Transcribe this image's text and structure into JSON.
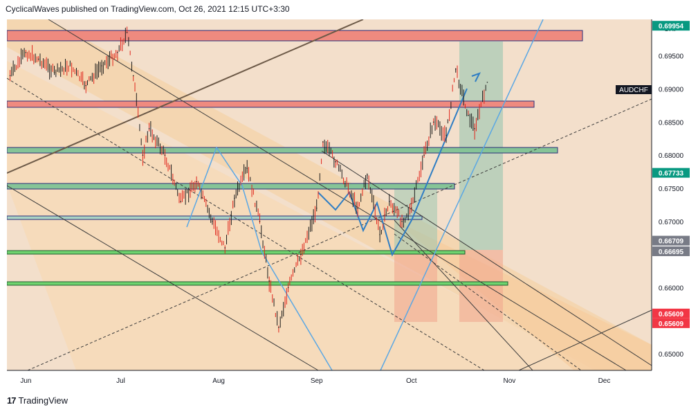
{
  "header": {
    "text": "CyclicalWaves published on TradingView.com, Oct 26, 2021 12:15 UTC+3:30"
  },
  "footer": {
    "logo": "17",
    "brand": "TradingView"
  },
  "chart_data": {
    "type": "line",
    "symbol": "AUDCHF",
    "currency": "CHF",
    "title": "",
    "xlabel": "",
    "ylabel": "",
    "x_ticks": [
      "Jun",
      "Jul",
      "Aug",
      "Sep",
      "Oct",
      "Nov",
      "Dec"
    ],
    "y_ticks": [
      "0.69500",
      "0.69000",
      "0.68500",
      "0.68000",
      "0.67500",
      "0.67000",
      "0.66000",
      "0.65000"
    ],
    "ylim": [
      0.6475,
      0.7005
    ],
    "price_labels": [
      {
        "value": "0.69954",
        "color": "#089981"
      },
      {
        "value": "0.67733",
        "color": "#089981"
      },
      {
        "value": "0.66709",
        "color": "#787b86"
      },
      {
        "value": "0.66695",
        "color": "#787b86"
      },
      {
        "value": "0.65609",
        "color": "#f23645"
      },
      {
        "value": "0.65609",
        "color": "#f23645"
      }
    ],
    "grid": false,
    "series": [
      {
        "x": [
          "2021-05-27",
          "2021-06-01",
          "2021-06-05",
          "2021-06-10",
          "2021-06-15",
          "2021-06-20",
          "2021-06-25",
          "2021-06-30",
          "2021-07-03",
          "2021-07-05",
          "2021-07-08",
          "2021-07-10",
          "2021-07-15",
          "2021-07-20",
          "2021-07-25",
          "2021-07-30",
          "2021-08-03",
          "2021-08-06",
          "2021-08-10",
          "2021-08-14",
          "2021-08-17",
          "2021-08-20",
          "2021-08-23",
          "2021-08-27",
          "2021-09-01",
          "2021-09-03",
          "2021-09-07",
          "2021-09-10",
          "2021-09-14",
          "2021-09-17",
          "2021-09-21",
          "2021-09-24",
          "2021-09-28",
          "2021-10-01",
          "2021-10-05",
          "2021-10-08",
          "2021-10-12",
          "2021-10-15",
          "2021-10-19",
          "2021-10-21",
          "2021-10-25"
        ],
        "y": [
          0.692,
          0.6955,
          0.6945,
          0.6925,
          0.6935,
          0.6905,
          0.6935,
          0.6955,
          0.6985,
          0.692,
          0.68,
          0.684,
          0.68,
          0.673,
          0.676,
          0.67,
          0.666,
          0.6735,
          0.678,
          0.67,
          0.661,
          0.654,
          0.66,
          0.665,
          0.672,
          0.682,
          0.679,
          0.676,
          0.672,
          0.677,
          0.668,
          0.673,
          0.67,
          0.672,
          0.68,
          0.685,
          0.683,
          0.693,
          0.686,
          0.684,
          0.691
        ]
      }
    ]
  }
}
